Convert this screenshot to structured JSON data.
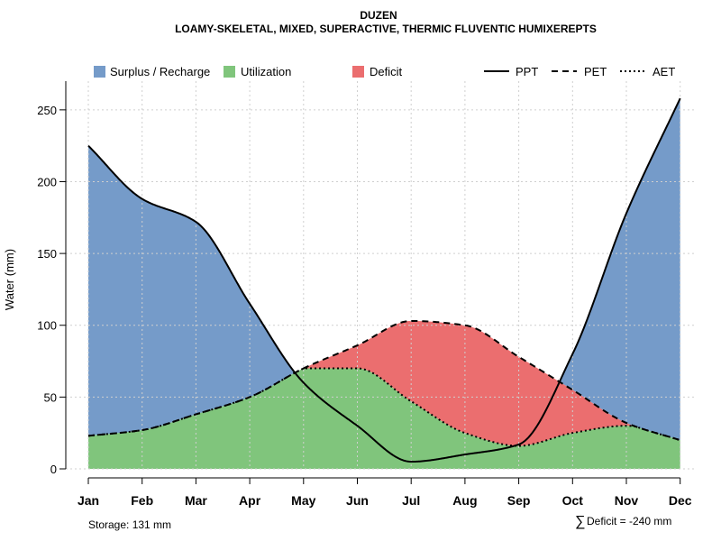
{
  "chart_data": {
    "type": "area",
    "title": "DUZEN",
    "subtitle": "LOAMY-SKELETAL, MIXED, SUPERACTIVE, THERMIC FLUVENTIC HUMIXEREPTS",
    "xlabel": "",
    "ylabel": "Water (mm)",
    "ylim": [
      0,
      270
    ],
    "yticks": [
      0,
      50,
      100,
      150,
      200,
      250
    ],
    "grid": true,
    "legend_position": "top",
    "categories": [
      "Jan",
      "Feb",
      "Mar",
      "Apr",
      "May",
      "Jun",
      "Jul",
      "Aug",
      "Sep",
      "Oct",
      "Nov",
      "Dec"
    ],
    "series": [
      {
        "name": "PPT",
        "style": "solid",
        "values": [
          225,
          188,
          172,
          115,
          60,
          30,
          5,
          10,
          17,
          80,
          178,
          258
        ]
      },
      {
        "name": "PET",
        "style": "dashed",
        "values": [
          23,
          27,
          38,
          50,
          70,
          86,
          103,
          100,
          78,
          55,
          32,
          20
        ]
      },
      {
        "name": "AET",
        "style": "dotted",
        "values": [
          23,
          27,
          38,
          50,
          70,
          70,
          47,
          25,
          16,
          25,
          30,
          20
        ]
      }
    ],
    "areas": [
      {
        "name": "Surplus / Recharge",
        "color": "#759BC9"
      },
      {
        "name": "Utilization",
        "color": "#80C57C"
      },
      {
        "name": "Deficit",
        "color": "#EB6E6F"
      }
    ],
    "annotations": {
      "storage": "Storage: 131 mm",
      "deficit_symbol": "∑",
      "deficit": "Deficit = -240 mm"
    }
  }
}
